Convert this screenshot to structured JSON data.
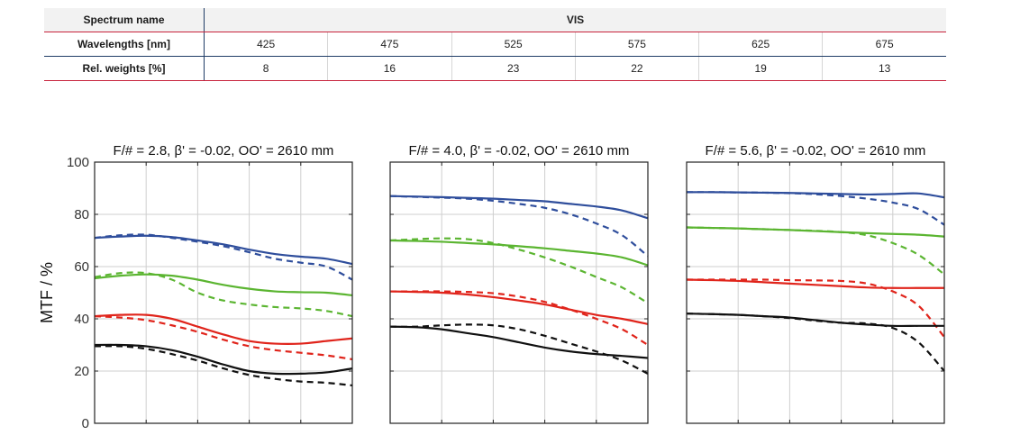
{
  "spectrum_table": {
    "name_label": "Spectrum name",
    "name_value": "VIS",
    "wavelengths_label": "Wavelengths [nm]",
    "wavelengths": [
      "425",
      "475",
      "525",
      "575",
      "625",
      "675"
    ],
    "weights_label": "Rel. weights [%]",
    "weights": [
      "8",
      "16",
      "23",
      "22",
      "19",
      "13"
    ]
  },
  "chart_data": [
    {
      "type": "line",
      "title": "F/# = 2.8, β' = -0.02, OO' = 2610 mm",
      "ylabel": "MTF / %",
      "ylim": [
        0,
        100
      ],
      "yticks": [
        "0",
        "20",
        "40",
        "60",
        "80",
        "100"
      ],
      "xlim": [
        0,
        1
      ],
      "grid": true,
      "series": [
        {
          "color": "#2f4e9c",
          "dash": false,
          "x": [
            0,
            0.1,
            0.2,
            0.3,
            0.4,
            0.5,
            0.6,
            0.7,
            0.8,
            0.9,
            1.0
          ],
          "y": [
            71,
            71.5,
            71.8,
            71.3,
            70,
            68.5,
            66.5,
            64.8,
            63.8,
            63,
            61
          ]
        },
        {
          "color": "#2f4e9c",
          "dash": true,
          "x": [
            0,
            0.1,
            0.2,
            0.3,
            0.4,
            0.5,
            0.6,
            0.7,
            0.8,
            0.9,
            1.0
          ],
          "y": [
            71,
            72,
            72.2,
            71,
            69.5,
            67.8,
            65.5,
            63,
            61.5,
            60,
            55
          ]
        },
        {
          "color": "#5bb531",
          "dash": false,
          "x": [
            0,
            0.1,
            0.2,
            0.3,
            0.4,
            0.5,
            0.6,
            0.7,
            0.8,
            0.9,
            1.0
          ],
          "y": [
            55.5,
            56.5,
            57,
            56.5,
            55,
            53,
            51.5,
            50.5,
            50.2,
            50,
            49
          ]
        },
        {
          "color": "#5bb531",
          "dash": true,
          "x": [
            0,
            0.1,
            0.2,
            0.3,
            0.4,
            0.5,
            0.6,
            0.7,
            0.8,
            0.9,
            1.0
          ],
          "y": [
            56,
            57.5,
            57.5,
            55,
            50,
            47,
            45.5,
            44.5,
            44,
            43,
            41
          ]
        },
        {
          "color": "#e0241b",
          "dash": false,
          "x": [
            0,
            0.1,
            0.2,
            0.3,
            0.4,
            0.5,
            0.6,
            0.7,
            0.8,
            0.9,
            1.0
          ],
          "y": [
            41,
            41.5,
            41.5,
            40,
            37,
            34,
            31.5,
            30.5,
            30.5,
            31.5,
            32.5
          ]
        },
        {
          "color": "#e0241b",
          "dash": true,
          "x": [
            0,
            0.1,
            0.2,
            0.3,
            0.4,
            0.5,
            0.6,
            0.7,
            0.8,
            0.9,
            1.0
          ],
          "y": [
            41,
            40.5,
            39.5,
            37.5,
            35,
            32,
            29.5,
            28,
            27,
            26,
            24.5
          ]
        },
        {
          "color": "#111111",
          "dash": false,
          "x": [
            0,
            0.1,
            0.2,
            0.3,
            0.4,
            0.5,
            0.6,
            0.7,
            0.8,
            0.9,
            1.0
          ],
          "y": [
            30,
            30,
            29.5,
            28,
            25.5,
            22.5,
            20,
            19,
            19,
            19.5,
            21
          ]
        },
        {
          "color": "#111111",
          "dash": true,
          "x": [
            0,
            0.1,
            0.2,
            0.3,
            0.4,
            0.5,
            0.6,
            0.7,
            0.8,
            0.9,
            1.0
          ],
          "y": [
            29.5,
            29.5,
            28.5,
            26.5,
            24,
            21,
            18.5,
            17,
            16,
            15.5,
            14.5
          ]
        }
      ]
    },
    {
      "type": "line",
      "title": "F/# = 4.0, β' = -0.02, OO' = 2610 mm",
      "ylim": [
        0,
        100
      ],
      "xlim": [
        0,
        1
      ],
      "grid": true,
      "series": [
        {
          "color": "#2f4e9c",
          "dash": false,
          "x": [
            0,
            0.1,
            0.2,
            0.3,
            0.4,
            0.5,
            0.6,
            0.7,
            0.8,
            0.9,
            1.0
          ],
          "y": [
            87,
            86.8,
            86.6,
            86.3,
            86,
            85.5,
            85,
            84,
            83,
            81.5,
            78.5
          ]
        },
        {
          "color": "#2f4e9c",
          "dash": true,
          "x": [
            0,
            0.1,
            0.2,
            0.3,
            0.4,
            0.5,
            0.6,
            0.7,
            0.8,
            0.9,
            1.0
          ],
          "y": [
            87,
            86.7,
            86.4,
            86,
            85.2,
            84,
            82.5,
            80,
            76.5,
            72,
            64
          ]
        },
        {
          "color": "#5bb531",
          "dash": false,
          "x": [
            0,
            0.1,
            0.2,
            0.3,
            0.4,
            0.5,
            0.6,
            0.7,
            0.8,
            0.9,
            1.0
          ],
          "y": [
            70,
            69.8,
            69.5,
            69,
            68.5,
            67.8,
            67,
            66,
            65,
            63.5,
            60.5
          ]
        },
        {
          "color": "#5bb531",
          "dash": true,
          "x": [
            0,
            0.1,
            0.2,
            0.3,
            0.4,
            0.5,
            0.6,
            0.7,
            0.8,
            0.9,
            1.0
          ],
          "y": [
            70,
            70.5,
            70.8,
            70.5,
            69,
            66.5,
            63.5,
            60,
            56,
            52,
            46
          ]
        },
        {
          "color": "#e0241b",
          "dash": false,
          "x": [
            0,
            0.1,
            0.2,
            0.3,
            0.4,
            0.5,
            0.6,
            0.7,
            0.8,
            0.9,
            1.0
          ],
          "y": [
            50.5,
            50.3,
            50,
            49.3,
            48.3,
            47,
            45.5,
            43.5,
            41.5,
            40,
            38
          ]
        },
        {
          "color": "#e0241b",
          "dash": true,
          "x": [
            0,
            0.1,
            0.2,
            0.3,
            0.4,
            0.5,
            0.6,
            0.7,
            0.8,
            0.9,
            1.0
          ],
          "y": [
            50.5,
            50.5,
            50.5,
            50.3,
            49.8,
            48.5,
            46.5,
            43.5,
            40,
            36,
            30
          ]
        },
        {
          "color": "#111111",
          "dash": false,
          "x": [
            0,
            0.1,
            0.2,
            0.3,
            0.4,
            0.5,
            0.6,
            0.7,
            0.8,
            0.9,
            1.0
          ],
          "y": [
            37,
            36.8,
            36,
            34.5,
            33,
            31,
            29,
            27.5,
            26.5,
            25.8,
            25
          ]
        },
        {
          "color": "#111111",
          "dash": true,
          "x": [
            0,
            0.1,
            0.2,
            0.3,
            0.4,
            0.5,
            0.6,
            0.7,
            0.8,
            0.9,
            1.0
          ],
          "y": [
            37,
            37,
            37.5,
            37.8,
            37.5,
            36,
            33.5,
            30.5,
            27.5,
            24,
            19
          ]
        }
      ]
    },
    {
      "type": "line",
      "title": "F/# = 5.6, β' = -0.02, OO' = 2610 mm",
      "ylim": [
        0,
        100
      ],
      "xlim": [
        0,
        1
      ],
      "grid": true,
      "series": [
        {
          "color": "#2f4e9c",
          "dash": false,
          "x": [
            0,
            0.1,
            0.2,
            0.3,
            0.4,
            0.5,
            0.6,
            0.7,
            0.8,
            0.9,
            1.0
          ],
          "y": [
            88.5,
            88.5,
            88.4,
            88.3,
            88.2,
            88,
            87.8,
            87.6,
            87.8,
            88,
            86.5
          ]
        },
        {
          "color": "#2f4e9c",
          "dash": true,
          "x": [
            0,
            0.1,
            0.2,
            0.3,
            0.4,
            0.5,
            0.6,
            0.7,
            0.8,
            0.9,
            1.0
          ],
          "y": [
            88.5,
            88.5,
            88.4,
            88.3,
            88.1,
            87.7,
            87,
            86,
            84.5,
            82,
            76
          ]
        },
        {
          "color": "#5bb531",
          "dash": false,
          "x": [
            0,
            0.1,
            0.2,
            0.3,
            0.4,
            0.5,
            0.6,
            0.7,
            0.8,
            0.9,
            1.0
          ],
          "y": [
            75,
            74.8,
            74.6,
            74.3,
            74,
            73.6,
            73.2,
            72.8,
            72.5,
            72.2,
            71.5
          ]
        },
        {
          "color": "#5bb531",
          "dash": true,
          "x": [
            0,
            0.1,
            0.2,
            0.3,
            0.4,
            0.5,
            0.6,
            0.7,
            0.8,
            0.9,
            1.0
          ],
          "y": [
            75,
            74.8,
            74.6,
            74.3,
            74,
            73.7,
            73.2,
            72,
            69,
            64.5,
            57
          ]
        },
        {
          "color": "#e0241b",
          "dash": false,
          "x": [
            0,
            0.1,
            0.2,
            0.3,
            0.4,
            0.5,
            0.6,
            0.7,
            0.8,
            0.9,
            1.0
          ],
          "y": [
            55,
            54.8,
            54.5,
            54,
            53.5,
            53,
            52.5,
            52,
            51.8,
            51.8,
            51.8
          ]
        },
        {
          "color": "#e0241b",
          "dash": true,
          "x": [
            0,
            0.1,
            0.2,
            0.3,
            0.4,
            0.5,
            0.6,
            0.7,
            0.8,
            0.9,
            1.0
          ],
          "y": [
            55,
            55,
            55,
            55,
            54.8,
            54.7,
            54.5,
            53.5,
            50.5,
            45,
            33
          ]
        },
        {
          "color": "#111111",
          "dash": false,
          "x": [
            0,
            0.1,
            0.2,
            0.3,
            0.4,
            0.5,
            0.6,
            0.7,
            0.8,
            0.9,
            1.0
          ],
          "y": [
            42,
            41.8,
            41.5,
            41,
            40.5,
            39.5,
            38.5,
            37.8,
            37.3,
            37.3,
            37.3
          ]
        },
        {
          "color": "#111111",
          "dash": true,
          "x": [
            0,
            0.1,
            0.2,
            0.3,
            0.4,
            0.5,
            0.6,
            0.7,
            0.8,
            0.9,
            1.0
          ],
          "y": [
            42,
            41.8,
            41.5,
            41,
            40.3,
            39.3,
            38.5,
            38.2,
            36.5,
            31,
            20
          ]
        }
      ]
    }
  ]
}
